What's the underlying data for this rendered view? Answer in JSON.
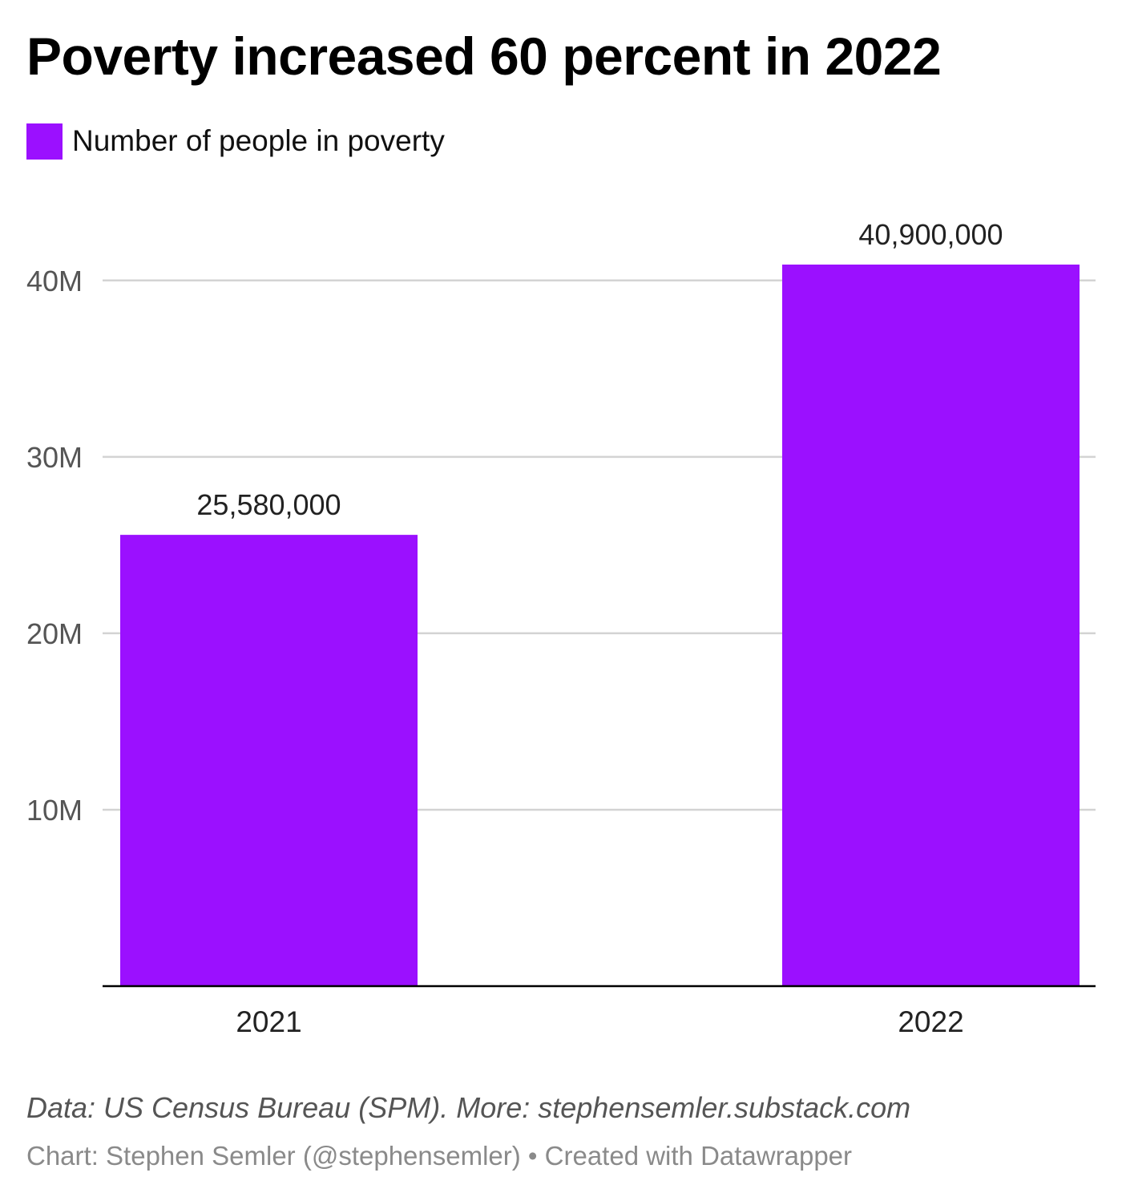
{
  "chart_data": {
    "type": "bar",
    "title": "Poverty increased 60 percent in 2022",
    "categories": [
      "2021",
      "2022"
    ],
    "series": [
      {
        "name": "Number of people in poverty",
        "values": [
          25580000,
          40900000
        ],
        "value_labels": [
          "25,580,000",
          "40,900,000"
        ],
        "color": "#9b10ff"
      }
    ],
    "yticks": [
      10000000,
      20000000,
      30000000,
      40000000
    ],
    "ytick_labels": [
      "10M",
      "20M",
      "30M",
      "40M"
    ],
    "ylim": [
      0,
      40900000
    ],
    "grid": true,
    "legend_position": "top-left",
    "xlabel": "",
    "ylabel": ""
  },
  "footer": {
    "source": "Data: US Census Bureau (SPM). More: stephensemler.substack.com",
    "byline": "Chart: Stephen Semler (@stephensemler) • Created with Datawrapper"
  }
}
